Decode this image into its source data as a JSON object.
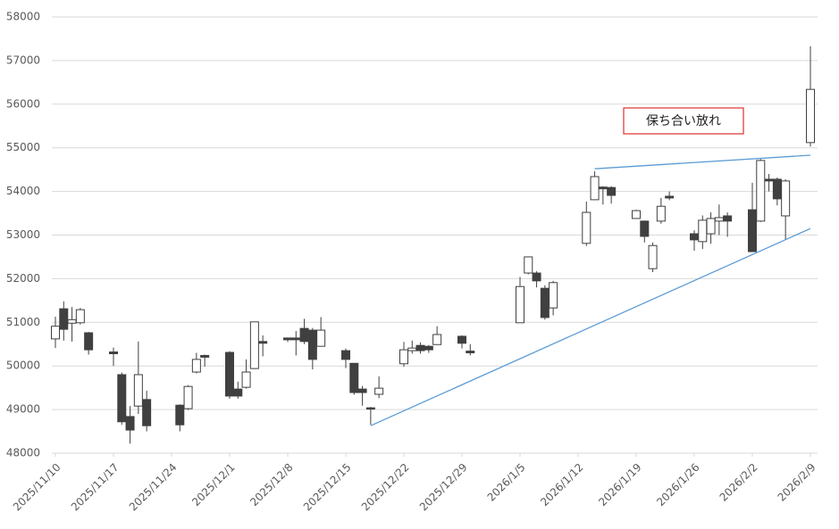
{
  "chart_data": {
    "type": "candlestick",
    "x": [
      "2025/11/10",
      "2025/11/11",
      "2025/11/12",
      "2025/11/13",
      "2025/11/14",
      "2025/11/17",
      "2025/11/18",
      "2025/11/19",
      "2025/11/20",
      "2025/11/21",
      "2025/11/25",
      "2025/11/26",
      "2025/11/27",
      "2025/11/28",
      "2025/12/1",
      "2025/12/2",
      "2025/12/3",
      "2025/12/4",
      "2025/12/5",
      "2025/12/8",
      "2025/12/9",
      "2025/12/10",
      "2025/12/11",
      "2025/12/12",
      "2025/12/15",
      "2025/12/16",
      "2025/12/17",
      "2025/12/18",
      "2025/12/19",
      "2025/12/22",
      "2025/12/23",
      "2025/12/24",
      "2025/12/25",
      "2025/12/26",
      "2025/12/29",
      "2025/12/30",
      "2026/1/5",
      "2026/1/6",
      "2026/1/7",
      "2026/1/8",
      "2026/1/9",
      "2026/1/13",
      "2026/1/14",
      "2026/1/15",
      "2026/1/16",
      "2026/1/19",
      "2026/1/20",
      "2026/1/21",
      "2026/1/22",
      "2026/1/23",
      "2026/1/26",
      "2026/1/27",
      "2026/1/28",
      "2026/1/29",
      "2026/1/30",
      "2026/2/2",
      "2026/2/3",
      "2026/2/4",
      "2026/2/5",
      "2026/2/6",
      "2026/2/9"
    ],
    "open": [
      50620,
      51310,
      50980,
      50990,
      50760,
      50320,
      49800,
      48840,
      49080,
      49230,
      49100,
      49020,
      49860,
      50240,
      50310,
      49470,
      49510,
      49940,
      50560,
      50640,
      50640,
      50860,
      50820,
      50450,
      50350,
      50060,
      49470,
      49040,
      49350,
      50050,
      50350,
      50470,
      50450,
      50490,
      50680,
      50340,
      50990,
      52130,
      52130,
      51780,
      51330,
      52810,
      53810,
      54100,
      54090,
      53380,
      53320,
      52230,
      53320,
      53890,
      53030,
      52850,
      53030,
      53320,
      53440,
      53580,
      53320,
      54280,
      54280,
      53440,
      55120
    ],
    "high": [
      51130,
      51480,
      51350,
      51330,
      50780,
      50420,
      49850,
      49080,
      50560,
      49430,
      49120,
      49560,
      50300,
      50260,
      50340,
      49640,
      50150,
      51010,
      50700,
      50650,
      50800,
      51080,
      50870,
      51120,
      50400,
      50060,
      49540,
      49060,
      49760,
      50550,
      50580,
      50540,
      50480,
      50910,
      50700,
      50500,
      52040,
      52500,
      52170,
      51850,
      51950,
      53770,
      54460,
      54120,
      54120,
      53580,
      53330,
      52830,
      53850,
      54000,
      53110,
      53450,
      53520,
      53700,
      53520,
      54200,
      54740,
      54400,
      54320,
      54280,
      57330
    ],
    "low": [
      50410,
      50580,
      50560,
      50950,
      50260,
      50000,
      48650,
      48220,
      48900,
      48500,
      48500,
      48990,
      49830,
      49980,
      49250,
      49250,
      49480,
      49930,
      50220,
      50550,
      50240,
      50500,
      49920,
      50450,
      49950,
      49340,
      49090,
      48650,
      49260,
      49980,
      50280,
      50280,
      50300,
      50490,
      50400,
      50240,
      50990,
      52100,
      51800,
      51060,
      51160,
      52750,
      53800,
      53700,
      53720,
      53380,
      52830,
      52150,
      53260,
      53800,
      52640,
      52680,
      52800,
      53000,
      52960,
      52620,
      53300,
      54000,
      53680,
      52900,
      55030
    ],
    "close": [
      50910,
      50840,
      51060,
      51290,
      50370,
      50280,
      48720,
      48530,
      49800,
      48630,
      48650,
      49530,
      50150,
      50200,
      49310,
      49310,
      49860,
      51010,
      50520,
      50600,
      50600,
      50560,
      50150,
      50820,
      50150,
      49390,
      49390,
      49010,
      49490,
      50370,
      50410,
      50350,
      50370,
      50720,
      50520,
      50300,
      51820,
      52500,
      51950,
      51110,
      51910,
      53520,
      54340,
      54060,
      53910,
      53560,
      52970,
      52760,
      53660,
      53850,
      52890,
      53340,
      53380,
      53400,
      53320,
      52620,
      54710,
      54240,
      53830,
      54240,
      56340
    ],
    "up_color": "#ffffff",
    "down_color": "#404040",
    "edge_color": "#404040",
    "ylim": [
      48000,
      58000
    ],
    "yticks": [
      48000,
      49000,
      50000,
      51000,
      52000,
      53000,
      54000,
      55000,
      56000,
      57000,
      58000
    ],
    "xticks": [
      "2025/11/10",
      "2025/11/17",
      "2025/11/24",
      "2025/12/1",
      "2025/12/8",
      "2025/12/15",
      "2025/12/22",
      "2025/12/29",
      "2026/1/5",
      "2026/1/12",
      "2026/1/19",
      "2026/1/26",
      "2026/2/2",
      "2026/2/9"
    ],
    "grid": true,
    "trendlines": [
      {
        "x": [
          "2026/1/14",
          "2026/2/9"
        ],
        "y": [
          54520,
          54830
        ],
        "color": "#5b9bd5"
      },
      {
        "x": [
          "2025/12/18",
          "2026/2/9"
        ],
        "y": [
          48630,
          53150
        ],
        "color": "#5b9bd5"
      }
    ],
    "annotation": {
      "text": "保ち合い放れ",
      "border_color": "#e03030"
    }
  }
}
